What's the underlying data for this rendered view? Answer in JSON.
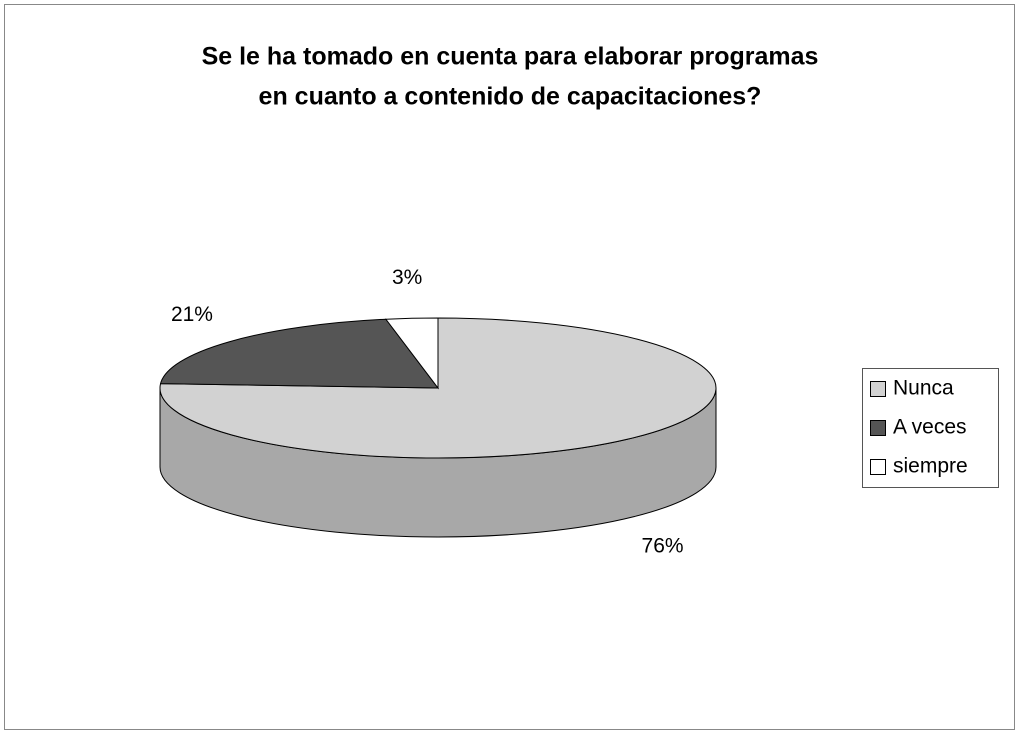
{
  "chart_data": {
    "type": "pie",
    "title": [
      "Se le ha tomado en cuenta para elaborar programas",
      "en cuanto a contenido de capacitaciones?"
    ],
    "categories": [
      "Nunca",
      "A veces",
      "siempre"
    ],
    "values": [
      76,
      21,
      3
    ],
    "value_labels": [
      "76%",
      "21%",
      "3%"
    ],
    "colors": [
      "#d2d2d2",
      "#555555",
      "#ffffff"
    ],
    "legend": "right"
  }
}
